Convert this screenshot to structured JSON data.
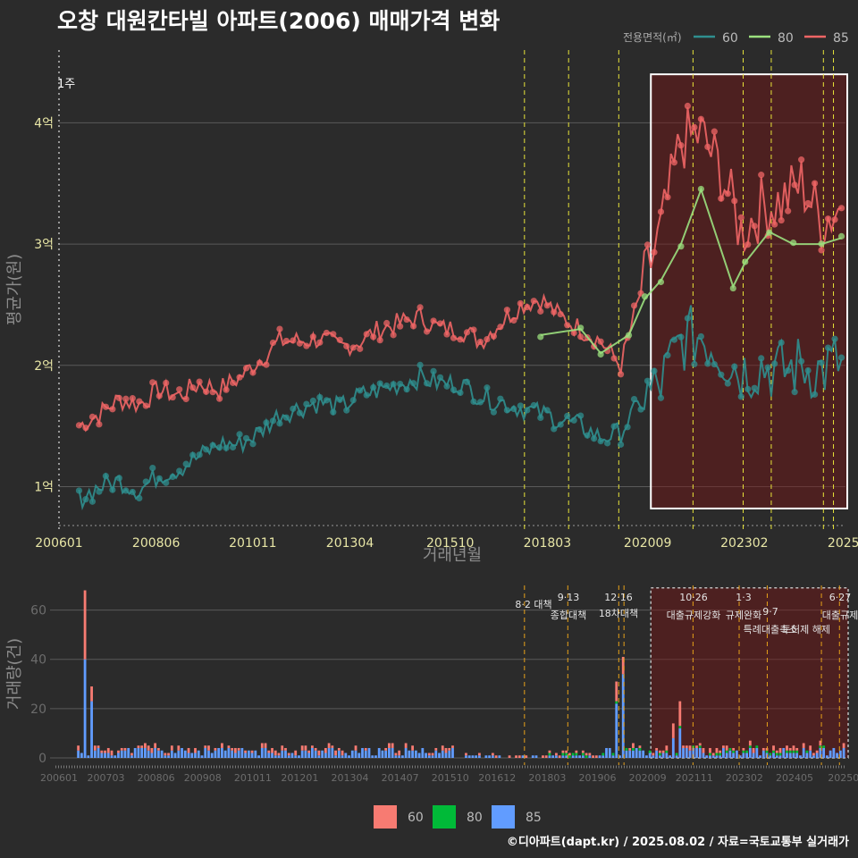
{
  "title": "오창 대원칸타빌 아파트(2006) 매매가격 변화",
  "footer": "©디아파트(dapt.kr) / 2025.08.02 / 자료=국토교통부 실거래가",
  "colors": {
    "s60": "#2f8f8f",
    "s80": "#9be07e",
    "s85": "#f06565",
    "bar60": "#f77b72",
    "bar80": "#00ba38",
    "bar85": "#619cff",
    "vline": "#e7e33a",
    "vline_bot": "#e6a11a",
    "highlight": "#ff7f7f"
  },
  "chart_data": [
    {
      "type": "line",
      "title": "오창 대원칸타빌 아파트(2006) 매매가격 변화",
      "xlabel": "거래년월",
      "ylabel": "평균가(원)",
      "x_tick_labels": [
        "200601",
        "200806",
        "201011",
        "201304",
        "201510",
        "201803",
        "202009",
        "202302",
        "2025"
      ],
      "y_tick_labels": [
        "1억",
        "2억",
        "3억",
        "4억"
      ],
      "y_ticks": [
        1,
        2,
        3,
        4
      ],
      "ylim": [
        0.65,
        4.6
      ],
      "xlim": [
        2006.0,
        2025.6
      ],
      "note": "1주",
      "legend_title": "전용면적(㎡)",
      "legend_position": "top-right",
      "legend": [
        "60",
        "80",
        "85"
      ],
      "policy_dates": [
        2017.6,
        2018.7,
        2019.95,
        2021.8,
        2023.05,
        2023.75,
        2025.05,
        2025.3
      ],
      "highlight_range": [
        2020.75,
        2025.6
      ],
      "series": [
        {
          "name": "85",
          "x": [
            2006.5,
            2007.0,
            2007.5,
            2008.0,
            2008.5,
            2009.0,
            2009.5,
            2010.0,
            2010.5,
            2011.0,
            2011.5,
            2012.0,
            2012.5,
            2013.0,
            2013.5,
            2014.0,
            2014.5,
            2015.0,
            2015.5,
            2016.0,
            2016.5,
            2017.0,
            2017.5,
            2018.0,
            2018.5,
            2019.0,
            2019.5,
            2020.0,
            2020.5,
            2021.0,
            2021.5,
            2022.0,
            2022.5,
            2023.0,
            2023.5,
            2024.0,
            2024.5,
            2025.0,
            2025.5
          ],
          "values": [
            1.5,
            1.6,
            1.72,
            1.68,
            1.8,
            1.75,
            1.85,
            1.8,
            1.9,
            2.05,
            2.2,
            2.2,
            2.22,
            2.15,
            2.2,
            2.3,
            2.35,
            2.4,
            2.3,
            2.3,
            2.2,
            2.35,
            2.5,
            2.55,
            2.4,
            2.3,
            2.2,
            2.0,
            2.6,
            3.1,
            3.85,
            3.9,
            3.6,
            3.1,
            3.3,
            3.35,
            3.5,
            3.2,
            3.3
          ]
        },
        {
          "name": "60",
          "x": [
            2006.5,
            2007.0,
            2007.5,
            2008.0,
            2008.5,
            2009.0,
            2009.5,
            2010.0,
            2010.5,
            2011.0,
            2011.5,
            2012.0,
            2012.5,
            2013.0,
            2013.5,
            2014.0,
            2014.5,
            2015.0,
            2015.5,
            2016.0,
            2016.5,
            2017.0,
            2017.5,
            2018.0,
            2018.5,
            2019.0,
            2019.5,
            2020.0,
            2020.5,
            2021.0,
            2021.5,
            2022.0,
            2022.5,
            2023.0,
            2023.5,
            2024.0,
            2024.5,
            2025.0,
            2025.5
          ],
          "values": [
            0.9,
            1.0,
            1.05,
            0.97,
            1.1,
            1.15,
            1.25,
            1.35,
            1.35,
            1.45,
            1.6,
            1.65,
            1.7,
            1.65,
            1.75,
            1.8,
            1.85,
            1.9,
            1.85,
            1.85,
            1.75,
            1.7,
            1.65,
            1.6,
            1.55,
            1.5,
            1.4,
            1.45,
            1.7,
            1.85,
            2.2,
            2.25,
            2.1,
            1.95,
            2.0,
            1.95,
            2.0,
            1.95,
            2.05
          ]
        },
        {
          "name": "80",
          "x": [
            2018.0,
            2019.0,
            2019.5,
            2020.2,
            2020.6,
            2021.0,
            2021.5,
            2022.0,
            2022.8,
            2023.1,
            2023.7,
            2024.3,
            2025.0,
            2025.5
          ],
          "values": [
            2.25,
            2.3,
            2.1,
            2.25,
            2.55,
            2.7,
            3.0,
            3.45,
            2.65,
            2.85,
            3.1,
            3.0,
            3.0,
            3.05
          ]
        }
      ]
    },
    {
      "type": "bar",
      "ylabel": "거래량(건)",
      "x_tick_labels": [
        "200601",
        "200703",
        "200806",
        "200908",
        "201011",
        "201201",
        "201304",
        "201407",
        "201510",
        "201612",
        "201803",
        "201906",
        "202009",
        "202111",
        "202302",
        "202405",
        "20250"
      ],
      "y_tick_labels": [
        "0",
        "20",
        "40",
        "60"
      ],
      "y_ticks": [
        0,
        20,
        40,
        60
      ],
      "ylim": [
        0,
        70
      ],
      "legend": [
        "60",
        "80",
        "85"
      ],
      "legend_position": "bottom",
      "annotations": [
        {
          "date": "8·2",
          "label": "대책"
        },
        {
          "date": "9·13",
          "label": "종합대책"
        },
        {
          "date": "12·16",
          "label": "18차대책"
        },
        {
          "date": "10·26",
          "label": "대출규제강화"
        },
        {
          "date": "1·3",
          "label": "규제완화"
        },
        {
          "date": "9·7",
          "label": "특례대출축소"
        },
        {
          "date": "",
          "label": "토허제 해제"
        },
        {
          "date": "6·27",
          "label": "대출규제"
        }
      ],
      "peaks": [
        {
          "x": 2006.65,
          "v85": 40,
          "v60": 28
        },
        {
          "x": 2006.8,
          "v85": 23,
          "v60": 6
        },
        {
          "x": 2019.9,
          "v85": 22,
          "v60": 8
        },
        {
          "x": 2020.05,
          "v85": 34,
          "v60": 7
        },
        {
          "x": 2021.3,
          "v85": 8,
          "v60": 6
        },
        {
          "x": 2021.45,
          "v85": 12,
          "v60": 10
        }
      ]
    }
  ]
}
